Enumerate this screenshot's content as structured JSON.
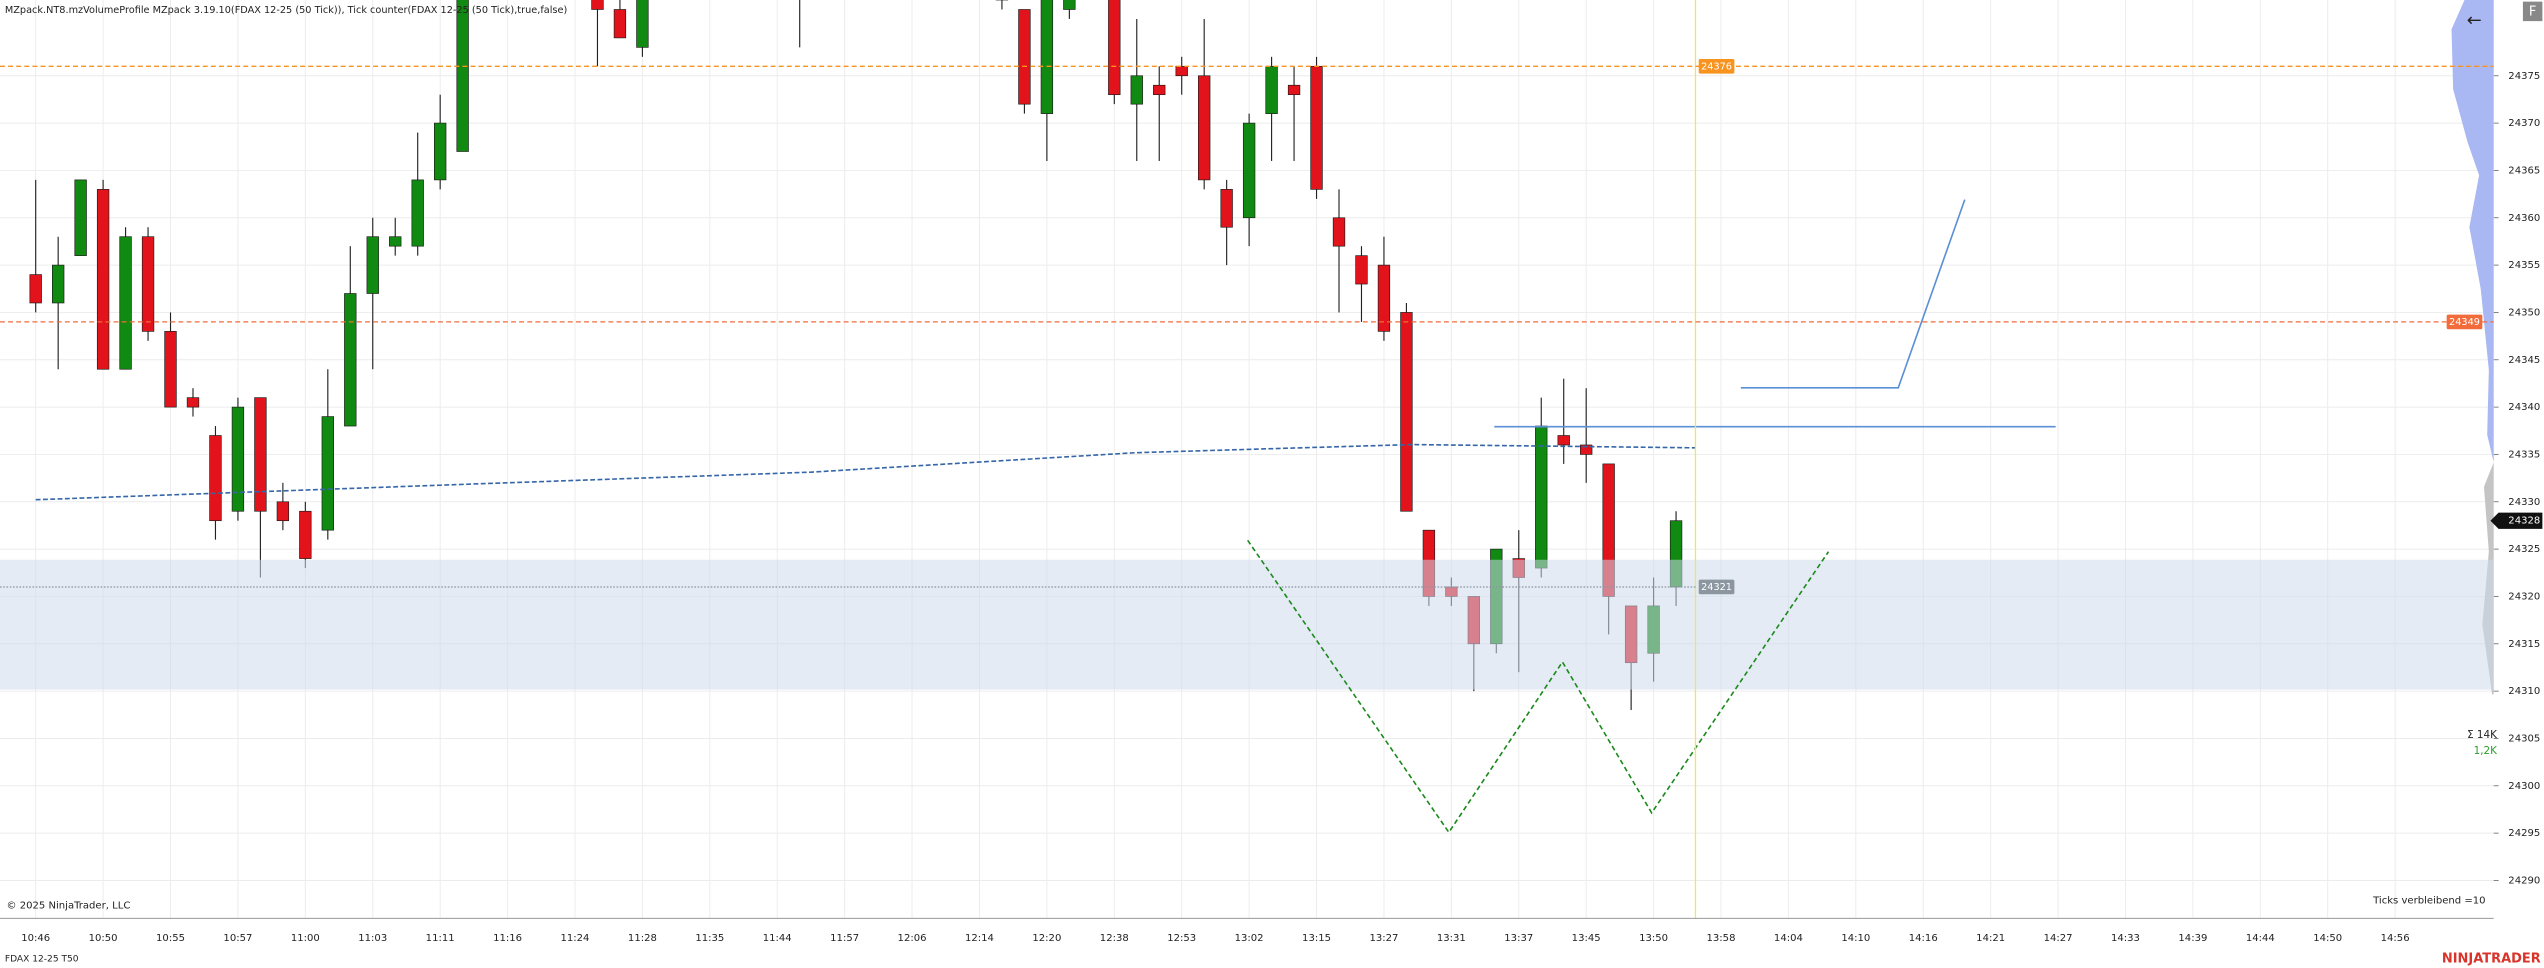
{
  "page": {
    "header": "MZpack.NT8.mzVolumeProfile MZpack 3.19.10(FDAX 12-25 (50 Tick)), Tick counter(FDAX 12-25 (50 Tick),true,false)",
    "copyright": "© 2025 NinjaTrader, LLC",
    "status_text": "Ticks verbleibend =10",
    "volume_sum": "Σ 14K",
    "volume_delta": "1,2K",
    "instrument": "FDAX 12-25 T50",
    "brand": "NINJATRADER",
    "back_icon": "←",
    "flag": "F"
  },
  "chart_data": {
    "type": "candlestick",
    "categories": [
      "10:46",
      null,
      null,
      "10:50",
      null,
      null,
      "10:55",
      null,
      null,
      "10:57",
      null,
      null,
      "11:00",
      null,
      null,
      "11:03",
      null,
      null,
      "11:11",
      null,
      null,
      "11:16",
      null,
      null,
      "11:24",
      null,
      null,
      "11:28",
      null,
      null,
      "11:35",
      null,
      null,
      "11:44",
      null,
      null,
      "11:57",
      null,
      null,
      "12:06",
      null,
      null,
      "12:14",
      null,
      null,
      "12:20",
      null,
      null,
      "12:38",
      null,
      null,
      "12:53",
      null,
      null,
      "13:02",
      null,
      null,
      "13:15",
      null,
      null,
      "13:27",
      null,
      null,
      "13:31",
      null,
      null,
      "13:37",
      null,
      null,
      "13:45",
      null,
      null,
      "13:50",
      null,
      null,
      "13:58",
      null,
      null,
      "14:04",
      null,
      null,
      "14:10",
      null,
      null,
      "14:16",
      null,
      null,
      "14:21",
      null,
      null,
      "14:27",
      null,
      null,
      "14:33",
      null,
      null,
      "14:39",
      null,
      null,
      "14:44",
      null,
      null,
      "14:50",
      null,
      null,
      "14:56"
    ],
    "open": [
      24354,
      24351,
      24356,
      24363,
      24344,
      24358,
      24348,
      24341,
      24337,
      24329,
      24341,
      24330,
      24329,
      24327,
      24338,
      24352,
      24357,
      24357,
      24364,
      24367,
      null,
      null,
      null,
      null,
      null,
      24386,
      24382,
      24378,
      null,
      null,
      null,
      null,
      null,
      null,
      24385,
      null,
      null,
      null,
      null,
      null,
      null,
      null,
      null,
      24386,
      24382,
      24371,
      24382,
      null,
      24385,
      24372,
      24374,
      24376,
      24375,
      24363,
      24360,
      24371,
      24374,
      24376,
      24360,
      24356,
      24355,
      24350,
      24327,
      24321,
      24320,
      24315,
      24324,
      24323,
      24337,
      24336,
      24334,
      24319,
      24314,
      24321,
      null,
      null,
      null,
      null,
      null,
      null,
      null,
      null,
      null,
      null,
      null,
      null,
      null,
      null,
      null,
      null,
      null,
      null,
      null,
      null,
      null,
      null,
      null,
      null,
      null,
      null,
      null,
      null,
      null,
      null,
      null,
      null
    ],
    "high": [
      24364,
      24358,
      24364,
      24364,
      24359,
      24359,
      24350,
      24342,
      24338,
      24341,
      24341,
      24332,
      24330,
      24344,
      24357,
      24360,
      24360,
      24369,
      24373,
      24386,
      null,
      null,
      null,
      null,
      null,
      24387,
      24383,
      24386,
      null,
      null,
      null,
      null,
      null,
      null,
      24388,
      null,
      null,
      null,
      null,
      null,
      null,
      null,
      null,
      24387,
      24382,
      24386,
      24386,
      null,
      24386,
      24381,
      24376,
      24377,
      24381,
      24364,
      24371,
      24377,
      24376,
      24377,
      24363,
      24357,
      24358,
      24351,
      24327,
      24322,
      24320,
      24325,
      24327,
      24341,
      24343,
      24342,
      24334,
      24319,
      24322,
      24329,
      null,
      null,
      null,
      null,
      null,
      null,
      null,
      null,
      null,
      null,
      null,
      null,
      null,
      null,
      null,
      null,
      null,
      null,
      null,
      null,
      null,
      null,
      null,
      null,
      null,
      null,
      null,
      null,
      null,
      null,
      null,
      null
    ],
    "low": [
      24350,
      24344,
      24356,
      24344,
      24344,
      24347,
      24340,
      24339,
      24326,
      24328,
      24322,
      24327,
      24323,
      24326,
      24338,
      24344,
      24356,
      24356,
      24363,
      24367,
      null,
      null,
      null,
      null,
      null,
      24376,
      24379,
      24377,
      null,
      null,
      null,
      null,
      null,
      null,
      24378,
      null,
      null,
      null,
      null,
      null,
      null,
      null,
      null,
      24382,
      24371,
      24366,
      24381,
      null,
      24372,
      24366,
      24366,
      24373,
      24363,
      24355,
      24357,
      24366,
      24366,
      24362,
      24350,
      24349,
      24347,
      24329,
      24319,
      24319,
      24310,
      24314,
      24312,
      24322,
      24334,
      24332,
      24316,
      24308,
      24311,
      24319,
      null,
      null,
      null,
      null,
      null,
      null,
      null,
      null,
      null,
      null,
      null,
      null,
      null,
      null,
      null,
      null,
      null,
      null,
      null,
      null,
      null,
      null,
      null,
      null,
      null,
      null,
      null,
      null,
      null,
      null,
      null,
      null
    ],
    "close": [
      24351,
      24355,
      24364,
      24344,
      24358,
      24348,
      24340,
      24340,
      24328,
      24340,
      24329,
      24328,
      24324,
      24339,
      24352,
      24358,
      24358,
      24364,
      24370,
      24385,
      null,
      null,
      null,
      null,
      null,
      24382,
      24379,
      24385,
      null,
      null,
      null,
      null,
      null,
      null,
      24387,
      null,
      null,
      null,
      null,
      null,
      null,
      null,
      null,
      24383,
      24372,
      24385,
      24385,
      null,
      24373,
      24375,
      24373,
      24375,
      24364,
      24359,
      24370,
      24376,
      24373,
      24363,
      24357,
      24353,
      24348,
      24329,
      24320,
      24320,
      24315,
      24325,
      24322,
      24338,
      24336,
      24335,
      24320,
      24313,
      24319,
      24328,
      null,
      null,
      null,
      null,
      null,
      null,
      null,
      null,
      null,
      null,
      null,
      null,
      null,
      null,
      null,
      null,
      null,
      null,
      null,
      null,
      null,
      null,
      null,
      null,
      null,
      null,
      null,
      null,
      null,
      null,
      null,
      null
    ],
    "up_color": "#118a11",
    "down_color": "#e3131b",
    "ylim": [
      24286,
      24383
    ],
    "yticks": [
      24290,
      24295,
      24300,
      24305,
      24310,
      24315,
      24320,
      24325,
      24330,
      24335,
      24340,
      24345,
      24350,
      24355,
      24360,
      24365,
      24370,
      24375
    ],
    "grid": true,
    "levels": [
      {
        "value": 24376,
        "color": "#f7931e"
      },
      {
        "value": 24349,
        "color": "#f26b3a"
      },
      {
        "value": 24321,
        "color": "#8c96a0"
      }
    ],
    "last_price": 24328
  }
}
